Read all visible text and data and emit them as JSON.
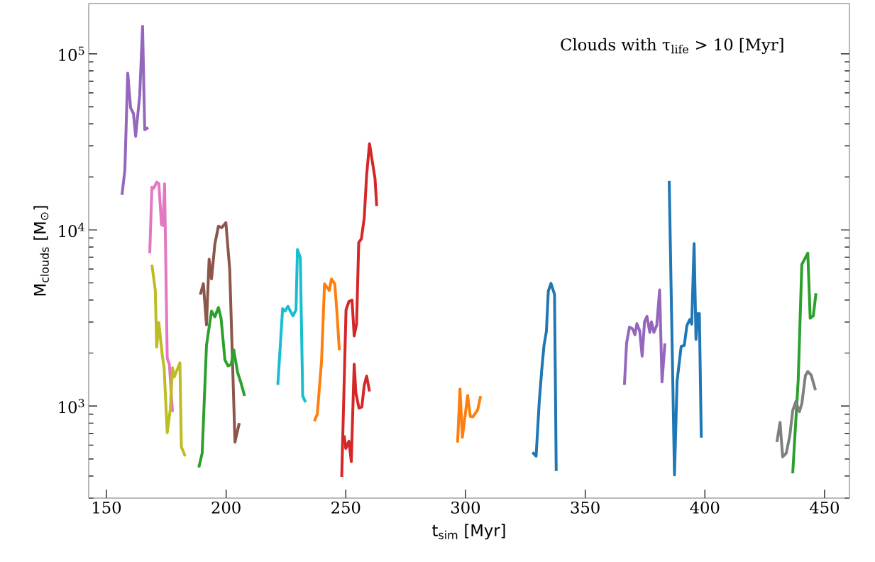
{
  "chart_data": {
    "type": "line",
    "xlabel": "t$_{sim}$ [Myr]",
    "ylabel": "M$_{clouds}$ [M$_{⊙}$]",
    "annotations": [
      "Clouds with τ$_{life}$ > 10 [Myr]"
    ],
    "log": "y",
    "marker": "none",
    "line_style": "solid",
    "xlim": [
      142.6,
      460.4
    ],
    "ylim": [
      300,
      193000
    ],
    "xticks": [
      150,
      200,
      250,
      300,
      350,
      400,
      450
    ],
    "yticks": [
      {
        "value": 1000,
        "label": "10$^{3}$"
      },
      {
        "value": 10000,
        "label": "10$^{4}$"
      },
      {
        "value": 100000,
        "label": "10$^{5}$"
      }
    ],
    "series": [
      {
        "color": "#9467bd",
        "x": [
          156.5,
          157.7,
          158.9,
          160.1,
          161.3,
          162.2,
          163.9,
          165.1,
          166.0,
          167.5
        ],
        "values": [
          15800,
          21800,
          77800,
          49400,
          45800,
          34000,
          57800,
          143500,
          37100,
          38100
        ]
      },
      {
        "color": "#e377c2",
        "x": [
          168.1,
          169.0,
          169.7,
          171.0,
          171.9,
          173.0,
          173.6,
          174.3,
          175.4,
          176.3,
          177.6
        ],
        "values": [
          7370,
          17500,
          17200,
          18700,
          18300,
          10700,
          10600,
          18300,
          1870,
          1720,
          925
        ]
      },
      {
        "color": "#bcbd22",
        "x": [
          169.0,
          170.4,
          171.0,
          171.9,
          173.3,
          174.1,
          175.4,
          176.7,
          177.6,
          178.3,
          180.7,
          181.3,
          182.9
        ],
        "values": [
          6350,
          4560,
          2160,
          2980,
          1950,
          1650,
          706,
          964,
          1650,
          1460,
          1760,
          586,
          518
        ]
      },
      {
        "color": "#8c564b",
        "x": [
          189.2,
          190.5,
          191.8,
          192.9,
          193.9,
          195.3,
          196.8,
          198.2,
          199.9,
          201.5,
          203.7,
          205.5
        ],
        "values": [
          4290,
          4950,
          2890,
          6820,
          5270,
          8310,
          10500,
          10300,
          11000,
          5970,
          624,
          800
        ]
      },
      {
        "color": "#2ca02c",
        "x": [
          188.6,
          190.0,
          191.8,
          193.9,
          195.3,
          196.8,
          197.9,
          199.5,
          200.8,
          202.1,
          203.2,
          204.8,
          206.1,
          207.7
        ],
        "values": [
          448,
          540,
          2210,
          3460,
          3210,
          3630,
          3140,
          1830,
          1690,
          1720,
          2080,
          1550,
          1370,
          1140
        ]
      },
      {
        "color": "#17becf",
        "x": [
          221.6,
          223.6,
          224.6,
          225.8,
          227.9,
          229.2,
          229.8,
          231.0,
          232.0,
          233.2
        ],
        "values": [
          1320,
          3570,
          3460,
          3680,
          3250,
          3510,
          7730,
          6950,
          1140,
          1050
        ]
      },
      {
        "color": "#ff7f0e",
        "x": [
          236.9,
          238.1,
          239.9,
          241.1,
          243.1,
          244.0,
          245.4,
          246.3,
          247.3
        ],
        "values": [
          820,
          900,
          1830,
          4940,
          4530,
          5260,
          4940,
          3400,
          2080
        ]
      },
      {
        "color": "#d62728",
        "x": [
          248.3,
          250.1,
          251.3,
          252.6,
          253.5,
          254.5,
          255.4,
          256.5,
          257.7,
          258.7,
          259.9,
          261.2,
          262.2,
          262.9
        ],
        "values": [
          396,
          3520,
          3920,
          4000,
          2500,
          2920,
          8490,
          8890,
          11700,
          20500,
          30900,
          23900,
          19600,
          13700
        ]
      },
      {
        "color": "#d62728",
        "x": [
          249.3,
          250.0,
          251.3,
          252.3,
          253.5,
          254.2,
          255.5,
          256.7,
          257.7,
          258.7,
          259.9
        ],
        "values": [
          681,
          574,
          631,
          484,
          1730,
          1190,
          973,
          988,
          1310,
          1480,
          1210
        ]
      },
      {
        "color": "#ff7f0e",
        "x": [
          296.7,
          297.7,
          298.7,
          300.9,
          302.0,
          303.1,
          305.1,
          306.3
        ],
        "values": [
          621,
          1250,
          665,
          1150,
          873,
          868,
          952,
          1140
        ]
      },
      {
        "color": "#1f77b4",
        "x": [
          328.0,
          329.5,
          330.8,
          331.8,
          332.8,
          333.8,
          334.6,
          335.7,
          337.2,
          337.9
        ],
        "values": [
          546,
          519,
          1050,
          1570,
          2210,
          2660,
          4500,
          4970,
          4300,
          428
        ]
      },
      {
        "color": "#9467bd",
        "x": [
          366.4,
          367.3,
          368.5,
          369.8,
          370.8,
          371.6,
          372.8,
          373.8,
          374.8,
          375.8,
          377.0,
          377.7,
          378.7,
          379.9,
          381.1,
          382.1,
          383.3
        ],
        "values": [
          1320,
          2280,
          2810,
          2740,
          2540,
          2940,
          2660,
          1920,
          3010,
          3230,
          2620,
          3010,
          2620,
          2870,
          4570,
          1370,
          2270
        ]
      },
      {
        "color": "#1f77b4",
        "x": [
          385.1,
          387.3,
          388.4,
          390.1,
          391.4,
          392.5,
          393.7,
          394.5,
          395.5,
          396.3,
          397.0,
          397.7,
          398.5
        ],
        "values": [
          19000,
          406,
          1390,
          2180,
          2210,
          2870,
          3100,
          2920,
          8360,
          2390,
          3350,
          3350,
          661
        ]
      },
      {
        "color": "#2ca02c",
        "x": [
          436.7,
          439.0,
          440.5,
          443.0,
          444.0,
          445.3,
          446.4
        ],
        "values": [
          415,
          1410,
          6370,
          7380,
          3150,
          3250,
          4370
        ]
      },
      {
        "color": "#7f7f7f",
        "x": [
          430.1,
          431.4,
          432.5,
          434.0,
          435.5,
          436.7,
          438.0,
          439.5,
          440.5,
          442.0,
          443.0,
          444.4,
          446.2
        ],
        "values": [
          625,
          807,
          515,
          540,
          681,
          943,
          1060,
          929,
          1030,
          1490,
          1570,
          1500,
          1230
        ]
      }
    ]
  }
}
